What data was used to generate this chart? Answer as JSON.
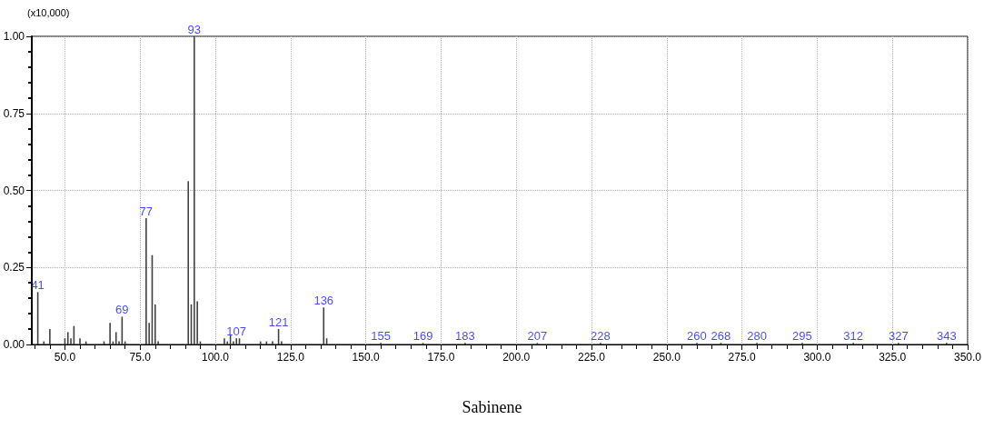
{
  "chart_data": {
    "type": "bar",
    "title": "Sabinene",
    "annotations": [
      "(x10,000)",
      {
        "text": "41",
        "x": 41,
        "y": 0.17
      },
      {
        "text": "69",
        "x": 69,
        "y": 0.09
      },
      {
        "text": "77",
        "x": 77,
        "y": 0.41
      },
      {
        "text": "93",
        "x": 93,
        "y": 1.0
      },
      {
        "text": "107",
        "x": 107,
        "y": 0.02
      },
      {
        "text": "121",
        "x": 121,
        "y": 0.05
      },
      {
        "text": "136",
        "x": 136,
        "y": 0.12
      },
      {
        "text": "155",
        "x": 155,
        "y": 0.005
      },
      {
        "text": "169",
        "x": 169,
        "y": 0.005
      },
      {
        "text": "183",
        "x": 183,
        "y": 0.005
      },
      {
        "text": "207",
        "x": 207,
        "y": 0.005
      },
      {
        "text": "228",
        "x": 228,
        "y": 0.005
      },
      {
        "text": "260",
        "x": 260,
        "y": 0.005
      },
      {
        "text": "268",
        "x": 268,
        "y": 0.005
      },
      {
        "text": "280",
        "x": 280,
        "y": 0.005
      },
      {
        "text": "295",
        "x": 295,
        "y": 0.005
      },
      {
        "text": "312",
        "x": 312,
        "y": 0.005
      },
      {
        "text": "327",
        "x": 327,
        "y": 0.005
      },
      {
        "text": "343",
        "x": 343,
        "y": 0.005
      }
    ],
    "x": [
      41,
      43,
      45,
      50,
      51,
      52,
      53,
      55,
      57,
      63,
      65,
      66,
      67,
      68,
      69,
      70,
      77,
      78,
      79,
      80,
      81,
      91,
      92,
      93,
      94,
      95,
      103,
      104,
      105,
      106,
      107,
      108,
      115,
      117,
      119,
      121,
      122,
      136,
      137,
      155,
      169,
      183,
      207,
      228,
      260,
      268,
      280,
      295,
      312,
      327,
      343
    ],
    "series": [
      {
        "color": "#404040",
        "values": [
          0.17,
          0.01,
          0.05,
          0.02,
          0.04,
          0.02,
          0.06,
          0.02,
          0.01,
          0.01,
          0.07,
          0.01,
          0.04,
          0.01,
          0.09,
          0.01,
          0.41,
          0.07,
          0.29,
          0.13,
          0.01,
          0.53,
          0.13,
          1.0,
          0.14,
          0.01,
          0.02,
          0.01,
          0.03,
          0.01,
          0.02,
          0.02,
          0.01,
          0.01,
          0.01,
          0.05,
          0.01,
          0.12,
          0.02,
          0.005,
          0.005,
          0.005,
          0.005,
          0.005,
          0.005,
          0.005,
          0.005,
          0.005,
          0.005,
          0.005,
          0.005
        ]
      }
    ],
    "xlim": [
      39,
      350
    ],
    "xticks": [
      {
        "value": 40,
        "label": null
      },
      {
        "value": 45,
        "label": null
      },
      {
        "value": 50,
        "label": "50.0"
      },
      {
        "value": 55,
        "label": null
      },
      {
        "value": 60,
        "label": null
      },
      {
        "value": 65,
        "label": null
      },
      {
        "value": 70,
        "label": null
      },
      {
        "value": 75,
        "label": "75.0"
      },
      {
        "value": 80,
        "label": null
      },
      {
        "value": 85,
        "label": null
      },
      {
        "value": 90,
        "label": null
      },
      {
        "value": 95,
        "label": null
      },
      {
        "value": 100,
        "label": "100.0"
      },
      {
        "value": 105,
        "label": null
      },
      {
        "value": 110,
        "label": null
      },
      {
        "value": 115,
        "label": null
      },
      {
        "value": 120,
        "label": null
      },
      {
        "value": 125,
        "label": "125.0"
      },
      {
        "value": 130,
        "label": null
      },
      {
        "value": 135,
        "label": null
      },
      {
        "value": 140,
        "label": null
      },
      {
        "value": 145,
        "label": null
      },
      {
        "value": 150,
        "label": "150.0"
      },
      {
        "value": 155,
        "label": null
      },
      {
        "value": 160,
        "label": null
      },
      {
        "value": 165,
        "label": null
      },
      {
        "value": 170,
        "label": null
      },
      {
        "value": 175,
        "label": "175.0"
      },
      {
        "value": 180,
        "label": null
      },
      {
        "value": 185,
        "label": null
      },
      {
        "value": 190,
        "label": null
      },
      {
        "value": 195,
        "label": null
      },
      {
        "value": 200,
        "label": "200.0"
      },
      {
        "value": 205,
        "label": null
      },
      {
        "value": 210,
        "label": null
      },
      {
        "value": 215,
        "label": null
      },
      {
        "value": 220,
        "label": null
      },
      {
        "value": 225,
        "label": "225.0"
      },
      {
        "value": 230,
        "label": null
      },
      {
        "value": 235,
        "label": null
      },
      {
        "value": 240,
        "label": null
      },
      {
        "value": 245,
        "label": null
      },
      {
        "value": 250,
        "label": "250.0"
      },
      {
        "value": 255,
        "label": null
      },
      {
        "value": 260,
        "label": null
      },
      {
        "value": 265,
        "label": null
      },
      {
        "value": 270,
        "label": null
      },
      {
        "value": 275,
        "label": "275.0"
      },
      {
        "value": 280,
        "label": null
      },
      {
        "value": 285,
        "label": null
      },
      {
        "value": 290,
        "label": null
      },
      {
        "value": 295,
        "label": null
      },
      {
        "value": 300,
        "label": "300.0"
      },
      {
        "value": 305,
        "label": null
      },
      {
        "value": 310,
        "label": null
      },
      {
        "value": 315,
        "label": null
      },
      {
        "value": 320,
        "label": null
      },
      {
        "value": 325,
        "label": "325.0"
      },
      {
        "value": 330,
        "label": null
      },
      {
        "value": 335,
        "label": null
      },
      {
        "value": 340,
        "label": null
      },
      {
        "value": 345,
        "label": null
      },
      {
        "value": 350,
        "label": "350.0"
      }
    ],
    "ylim": [
      0,
      1
    ],
    "yticks": [
      {
        "value": 0,
        "label": "0.00"
      },
      {
        "value": 0.05,
        "label": null
      },
      {
        "value": 0.1,
        "label": null
      },
      {
        "value": 0.15,
        "label": null
      },
      {
        "value": 0.2,
        "label": null
      },
      {
        "value": 0.25,
        "label": "0.25"
      },
      {
        "value": 0.3,
        "label": null
      },
      {
        "value": 0.35,
        "label": null
      },
      {
        "value": 0.4,
        "label": null
      },
      {
        "value": 0.45,
        "label": null
      },
      {
        "value": 0.5,
        "label": "0.50"
      },
      {
        "value": 0.55,
        "label": null
      },
      {
        "value": 0.6,
        "label": null
      },
      {
        "value": 0.65,
        "label": null
      },
      {
        "value": 0.7,
        "label": null
      },
      {
        "value": 0.75,
        "label": "0.75"
      },
      {
        "value": 0.8,
        "label": null
      },
      {
        "value": 0.85,
        "label": null
      },
      {
        "value": 0.9,
        "label": null
      },
      {
        "value": 0.95,
        "label": null
      },
      {
        "value": 1,
        "label": "1.00"
      }
    ],
    "grid": true
  }
}
